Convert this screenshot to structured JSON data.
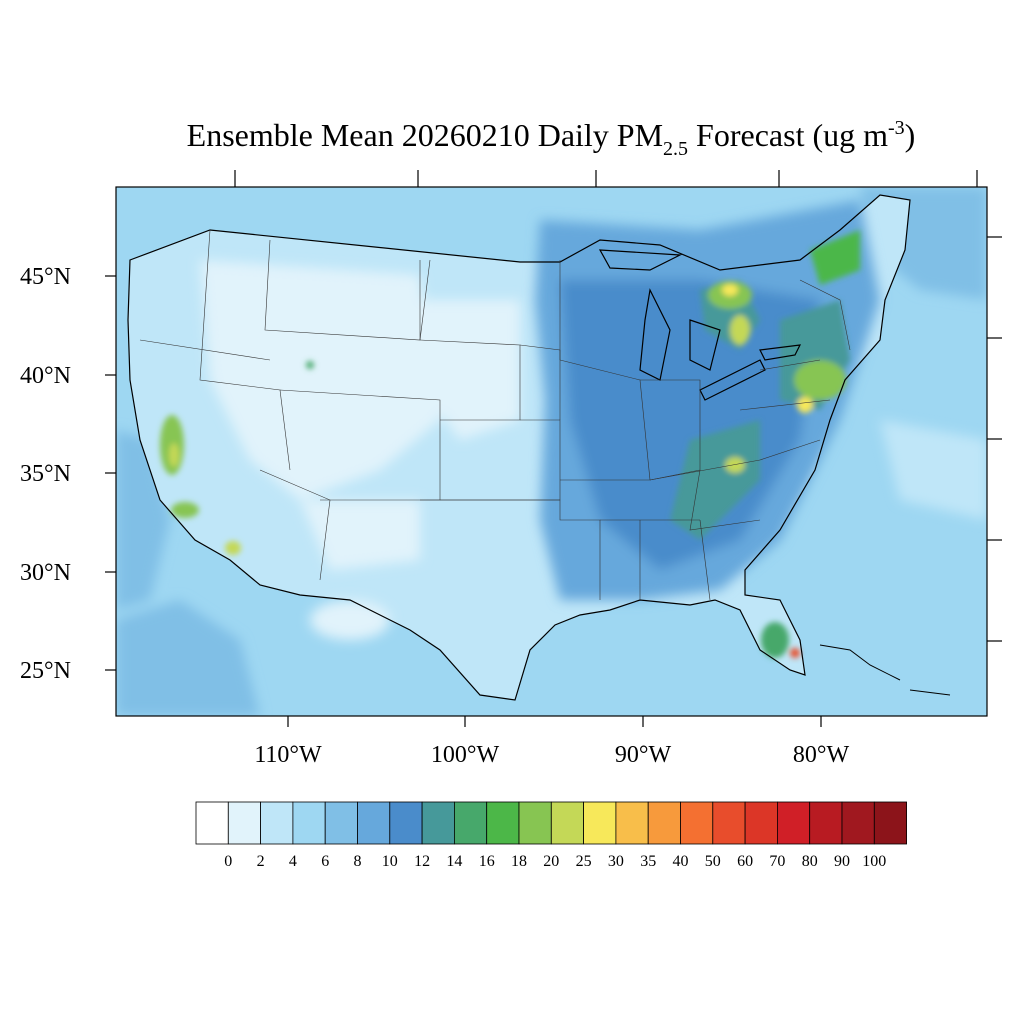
{
  "title": {
    "prefix": "Ensemble Mean 20260210 Daily PM",
    "sub": "2.5",
    "suffix": " Forecast (ug m",
    "sup": "-3",
    "close": ")"
  },
  "map": {
    "lat_labels": [
      "45°N",
      "40°N",
      "35°N",
      "30°N",
      "25°N"
    ],
    "lon_labels": [
      "110°W",
      "100°W",
      "90°W",
      "80°W"
    ]
  },
  "colorbar": {
    "labels": [
      "0",
      "2",
      "4",
      "6",
      "8",
      "10",
      "12",
      "14",
      "16",
      "18",
      "20",
      "25",
      "30",
      "35",
      "40",
      "50",
      "60",
      "70",
      "80",
      "90",
      "100"
    ],
    "colors": [
      "#ffffff",
      "#e1f3fb",
      "#bfe6f8",
      "#9ed7f2",
      "#80bfe6",
      "#66a8dc",
      "#4a8ccb",
      "#46999a",
      "#47a86b",
      "#4cb748",
      "#87c552",
      "#c4d857",
      "#f7e85a",
      "#f8be4a",
      "#f79a3c",
      "#f47031",
      "#e84d2c",
      "#dc3627",
      "#d01f27",
      "#b81b22",
      "#a0181f",
      "#8c141a"
    ]
  }
}
